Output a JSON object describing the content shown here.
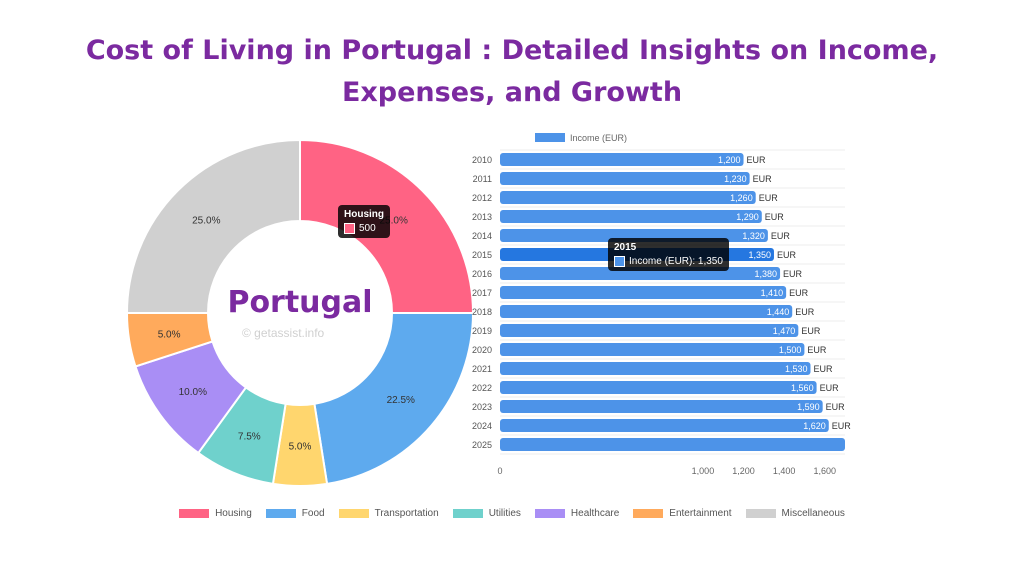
{
  "header": {
    "title_line1": "Cost of Living in Portugal  : Detailed Insights on Income,",
    "title_line2": "Expenses, and Growth"
  },
  "center_label": "Portugal",
  "watermark": "© getassist.info",
  "colors": {
    "housing": "#ff6384",
    "food": "#5eaaee",
    "transportation": "#ffd66e",
    "utilities": "#6fd1cc",
    "healthcare": "#a98ef5",
    "entertainment": "#ffaa5c",
    "miscellaneous": "#d0d0d0",
    "bar": "#4d93e8",
    "bar_highlight": "#2577e0"
  },
  "chart_data": [
    {
      "type": "pie",
      "categories": [
        "Housing",
        "Food",
        "Transportation",
        "Utilities",
        "Healthcare",
        "Entertainment",
        "Miscellaneous"
      ],
      "values": [
        25.0,
        22.5,
        5.0,
        7.5,
        10.0,
        5.0,
        25.0
      ],
      "data_labels": [
        "25.0%",
        "22.5%",
        "5.0%",
        "7.5%",
        "10.0%",
        "5.0%",
        "25.0%"
      ],
      "legend_position": "bottom",
      "tooltip": {
        "title": "Housing",
        "value": "500"
      }
    },
    {
      "type": "bar",
      "orientation": "horizontal",
      "categories": [
        "2010",
        "2011",
        "2012",
        "2013",
        "2014",
        "2015",
        "2016",
        "2017",
        "2018",
        "2019",
        "2020",
        "2021",
        "2022",
        "2023",
        "2024",
        "2025"
      ],
      "series": [
        {
          "name": "Income (EUR)",
          "values": [
            1200,
            1230,
            1260,
            1290,
            1320,
            1350,
            1380,
            1410,
            1440,
            1470,
            1500,
            1530,
            1560,
            1590,
            1620,
            1700
          ]
        }
      ],
      "data_labels": [
        "1,200 EUR",
        "1,230 EUR",
        "1,260 EUR",
        "1,290 EUR",
        "1,320 EUR",
        "1,350 EUR",
        "1,380 EUR",
        "1,410 EUR",
        "1,440 EUR",
        "1,470 EUR",
        "1,500 EUR",
        "1,530 EUR",
        "1,560 EUR",
        "1,590 EUR",
        "1,620 EUR",
        ""
      ],
      "xticks": [
        "0",
        "1,000",
        "1,200",
        "1,400",
        "1,600"
      ],
      "legend_position": "top",
      "grid": true,
      "tooltip": {
        "title": "2015",
        "text": "Income (EUR): 1,350"
      }
    }
  ]
}
